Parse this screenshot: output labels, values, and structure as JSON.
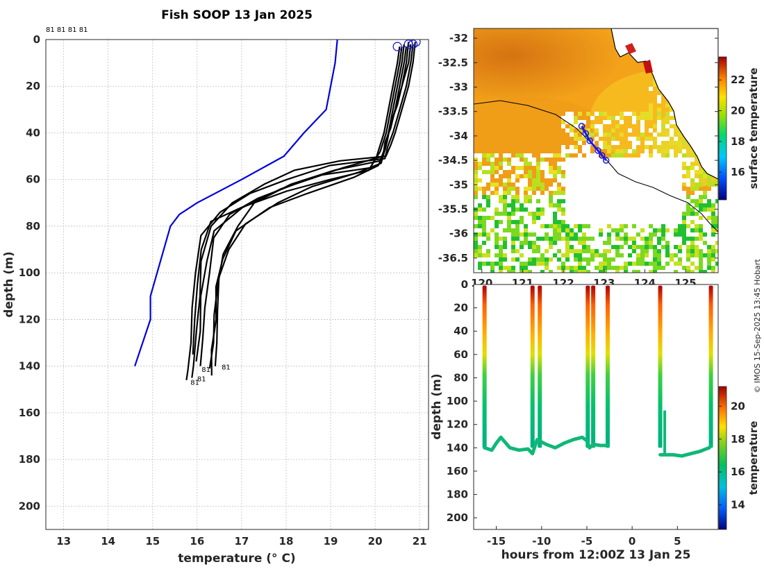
{
  "title": "Fish SOOP 13 Jan 2025",
  "stamp": "© IMOS 15-Sep-2025 13:45 Hobart",
  "chart_data": [
    {
      "type": "line",
      "name": "profiles",
      "xlabel": "temperature (° C)",
      "ylabel": "depth (m)",
      "xlim": [
        12.6,
        21.2
      ],
      "ylim": [
        210,
        0
      ],
      "xticks": [
        13,
        14,
        15,
        16,
        17,
        18,
        19,
        20,
        21
      ],
      "yticks": [
        0,
        20,
        40,
        60,
        80,
        100,
        120,
        140,
        160,
        180,
        200
      ],
      "grid": true,
      "top_labels": "81 81 81 81",
      "climatology": {
        "color": "#0000dd",
        "temperature": [
          19.15,
          19.1,
          18.9,
          18.4,
          17.95,
          17.0,
          16.0,
          15.6,
          15.4,
          15.25,
          15.1,
          14.95,
          14.95,
          14.6
        ],
        "depth": [
          0,
          10,
          30,
          40,
          50,
          60,
          70,
          75,
          80,
          90,
          100,
          110,
          120,
          140
        ]
      },
      "profiles": [
        {
          "temperature": [
            20.9,
            20.85,
            20.75,
            20.6,
            20.45,
            20.35,
            20.25,
            19.2,
            18.2,
            17.5,
            16.8,
            16.3,
            16.1,
            16.05,
            16.0,
            15.9,
            15.9
          ],
          "depth": [
            1,
            10,
            20,
            30,
            40,
            45,
            50,
            52,
            56,
            62,
            70,
            80,
            95,
            110,
            125,
            140,
            145
          ]
        },
        {
          "temperature": [
            20.85,
            20.8,
            20.7,
            20.55,
            20.4,
            20.3,
            20.2,
            19.0,
            18.0,
            17.2,
            16.5,
            16.1,
            15.95,
            15.9,
            15.85,
            15.8,
            15.75
          ],
          "depth": [
            2,
            10,
            20,
            30,
            40,
            46,
            51,
            54,
            60,
            66,
            74,
            84,
            100,
            115,
            130,
            142,
            146
          ]
        },
        {
          "temperature": [
            20.8,
            20.75,
            20.6,
            20.45,
            20.35,
            20.25,
            20.15,
            19.3,
            18.3,
            17.4,
            16.7,
            16.4,
            16.25,
            16.2,
            16.1,
            16.1
          ],
          "depth": [
            2,
            10,
            20,
            30,
            38,
            44,
            50,
            55,
            61,
            68,
            75,
            85,
            100,
            115,
            128,
            140
          ]
        },
        {
          "temperature": [
            20.7,
            20.65,
            20.55,
            20.45,
            20.3,
            20.2,
            20.1,
            19.1,
            18.1,
            17.3,
            16.9,
            16.6,
            16.45,
            16.4,
            16.35,
            16.3
          ],
          "depth": [
            3,
            10,
            20,
            30,
            40,
            48,
            52,
            56,
            62,
            70,
            80,
            92,
            105,
            118,
            130,
            141
          ]
        },
        {
          "temperature": [
            20.75,
            20.7,
            20.6,
            20.5,
            20.35,
            20.25,
            20.15,
            19.6,
            18.6,
            17.8,
            17.1,
            16.7,
            16.5,
            16.45,
            16.45,
            16.4
          ],
          "depth": [
            1,
            10,
            20,
            28,
            36,
            44,
            53,
            57,
            63,
            70,
            79,
            90,
            102,
            116,
            130,
            140
          ]
        },
        {
          "temperature": [
            20.65,
            20.6,
            20.5,
            20.4,
            20.3,
            20.2,
            20.1,
            19.5,
            18.5,
            17.6,
            16.9,
            16.55,
            16.45,
            16.4,
            16.35,
            16.3
          ],
          "depth": [
            2,
            10,
            20,
            30,
            40,
            47,
            54,
            59,
            66,
            72,
            82,
            94,
            106,
            120,
            133,
            144
          ]
        },
        {
          "temperature": [
            20.6,
            20.55,
            20.45,
            20.35,
            20.25,
            20.1,
            19.9,
            18.8,
            17.9,
            17.0,
            16.4,
            16.2,
            16.1,
            16.05,
            16.0
          ],
          "depth": [
            3,
            10,
            20,
            30,
            40,
            48,
            55,
            58,
            64,
            72,
            82,
            95,
            110,
            125,
            138
          ]
        },
        {
          "temperature": [
            20.55,
            20.5,
            20.4,
            20.3,
            20.2,
            20.05,
            19.85,
            19.0,
            18.0,
            17.0,
            16.3,
            16.1,
            16.0,
            15.95,
            15.9
          ],
          "depth": [
            3,
            10,
            20,
            30,
            40,
            50,
            56,
            60,
            65,
            72,
            78,
            90,
            105,
            120,
            135
          ]
        }
      ],
      "end_labels": [
        "81",
        "81",
        "81",
        "81"
      ]
    },
    {
      "type": "heatmap",
      "name": "surface-map",
      "xlim": [
        119.8,
        125.8
      ],
      "ylim": [
        -36.8,
        -31.8
      ],
      "xticks": [
        120,
        121,
        122,
        123,
        124,
        125
      ],
      "yticks": [
        -32,
        -32.5,
        -33,
        -33.5,
        -34,
        -34.5,
        -35,
        -35.5,
        -36,
        -36.5
      ],
      "colorbar_label": "surface temperature",
      "colorbar_range": [
        14.2,
        23.5
      ],
      "colorbar_ticks": [
        16,
        18,
        20,
        22
      ],
      "track": {
        "lon": [
          122.45,
          122.55,
          122.65,
          122.85,
          122.95,
          123.05
        ],
        "lat": [
          -33.8,
          -33.95,
          -34.1,
          -34.3,
          -34.4,
          -34.5
        ]
      }
    },
    {
      "type": "scatter",
      "name": "depth-time",
      "xlabel": "hours from 12:00Z 13 Jan 25",
      "ylabel": "depth (m)",
      "xlim": [
        -17.5,
        9.5
      ],
      "ylim": [
        210,
        0
      ],
      "xticks": [
        -15,
        -10,
        -5,
        0,
        5
      ],
      "yticks": [
        0,
        20,
        40,
        60,
        80,
        100,
        120,
        140,
        160,
        180,
        200
      ],
      "colorbar_label": "temperature",
      "colorbar_range": [
        12.5,
        21.2
      ],
      "colorbar_ticks": [
        14,
        16,
        18,
        20
      ],
      "dive_hours": [
        -16.3,
        -11.0,
        -10.2,
        -4.9,
        -4.3,
        -2.7,
        3.1,
        8.7
      ],
      "bottom_track": {
        "hours": [
          -16.3,
          -15.5,
          -15.0,
          -14.5,
          -13.5,
          -12.5,
          -11.5,
          -11.0,
          -10.5,
          -9.5,
          -8.5,
          -7.5,
          -6.5,
          -5.5,
          -5.0,
          -4.7,
          -4.3,
          -3.5,
          -2.7,
          3.1,
          3.6,
          4.5,
          5.5,
          6.5,
          7.5,
          8.5,
          8.7
        ],
        "depth": [
          140,
          142,
          136,
          131,
          140,
          142,
          141,
          145,
          133,
          137,
          140,
          136,
          133,
          131,
          134,
          140,
          137,
          138,
          138,
          146,
          146,
          146,
          147,
          145,
          143,
          140,
          138
        ]
      }
    }
  ]
}
